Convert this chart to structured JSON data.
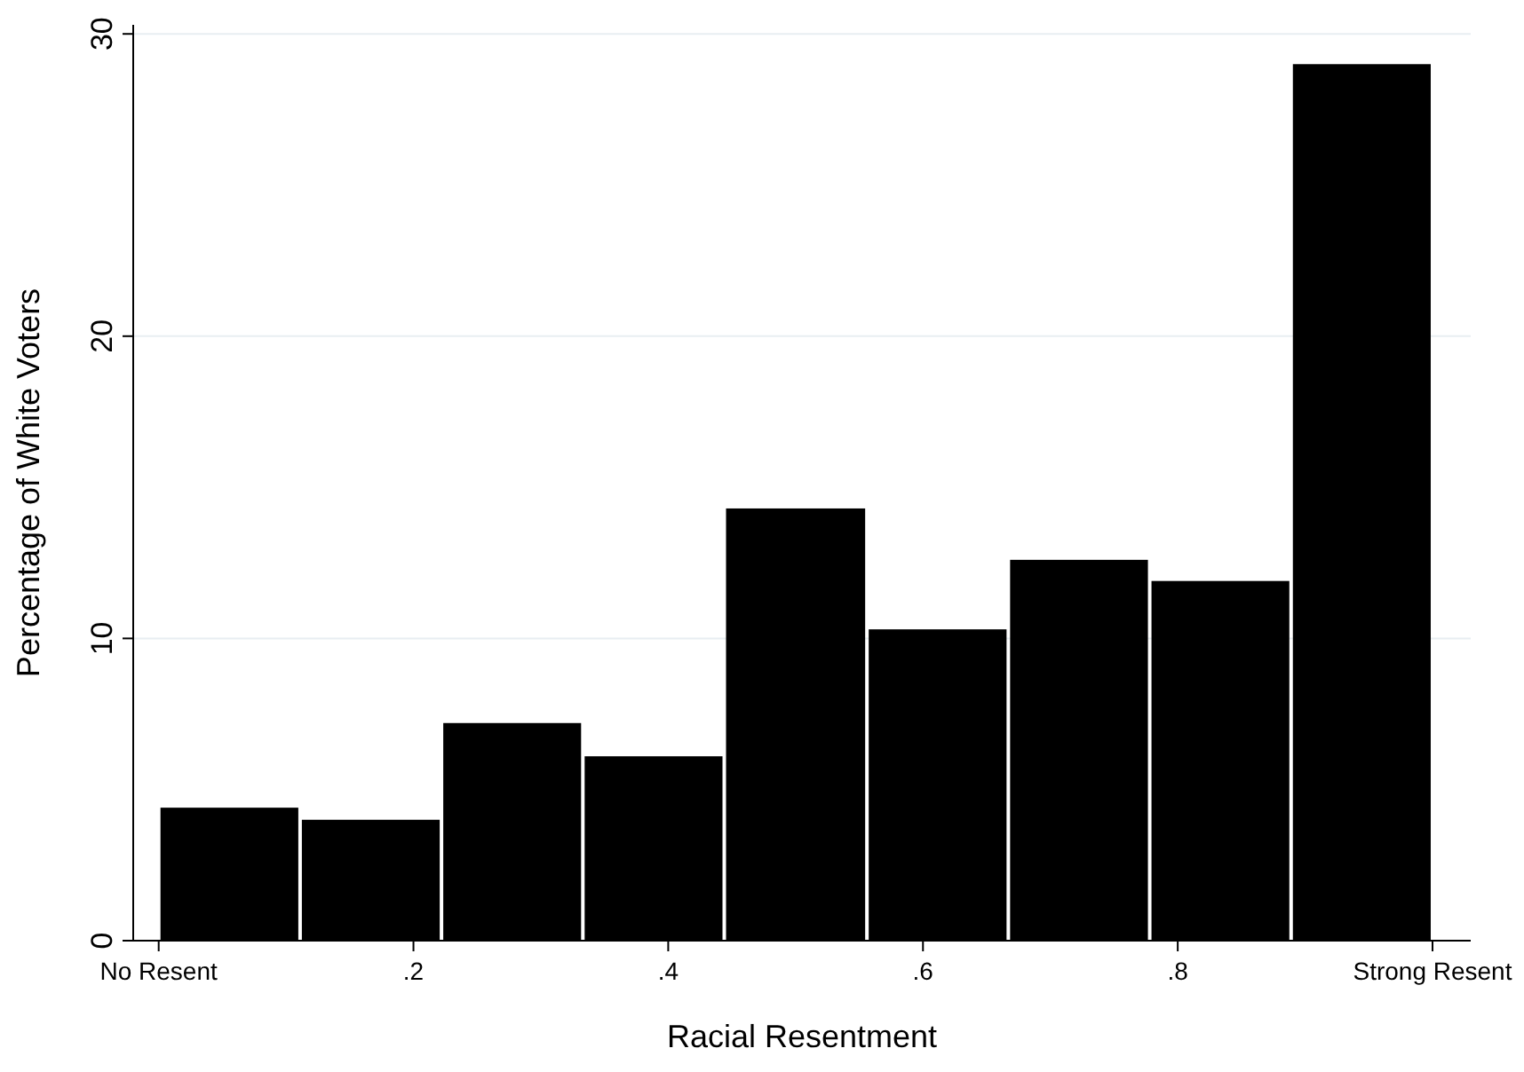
{
  "chart_data": {
    "type": "histogram",
    "xlabel": "Racial Resentment",
    "ylabel": "Percentage of White Voters",
    "bins": [
      0,
      0.111,
      0.222,
      0.333,
      0.444,
      0.556,
      0.667,
      0.778,
      0.889,
      1
    ],
    "values": [
      4.4,
      4.0,
      7.2,
      6.1,
      14.3,
      10.3,
      12.6,
      11.9,
      29.0
    ],
    "color": "#000000",
    "xlim": [
      -0.02,
      1.03
    ],
    "ylim": [
      0,
      30.3
    ],
    "xticks": [
      {
        "value": 0,
        "label": "No Resent"
      },
      {
        "value": 0.2,
        "label": ".2"
      },
      {
        "value": 0.4,
        "label": ".4"
      },
      {
        "value": 0.6,
        "label": ".6"
      },
      {
        "value": 0.8,
        "label": ".8"
      },
      {
        "value": 1,
        "label": "Strong Resent"
      }
    ],
    "yticks": [
      0,
      10,
      20,
      30
    ],
    "grid": "y"
  }
}
